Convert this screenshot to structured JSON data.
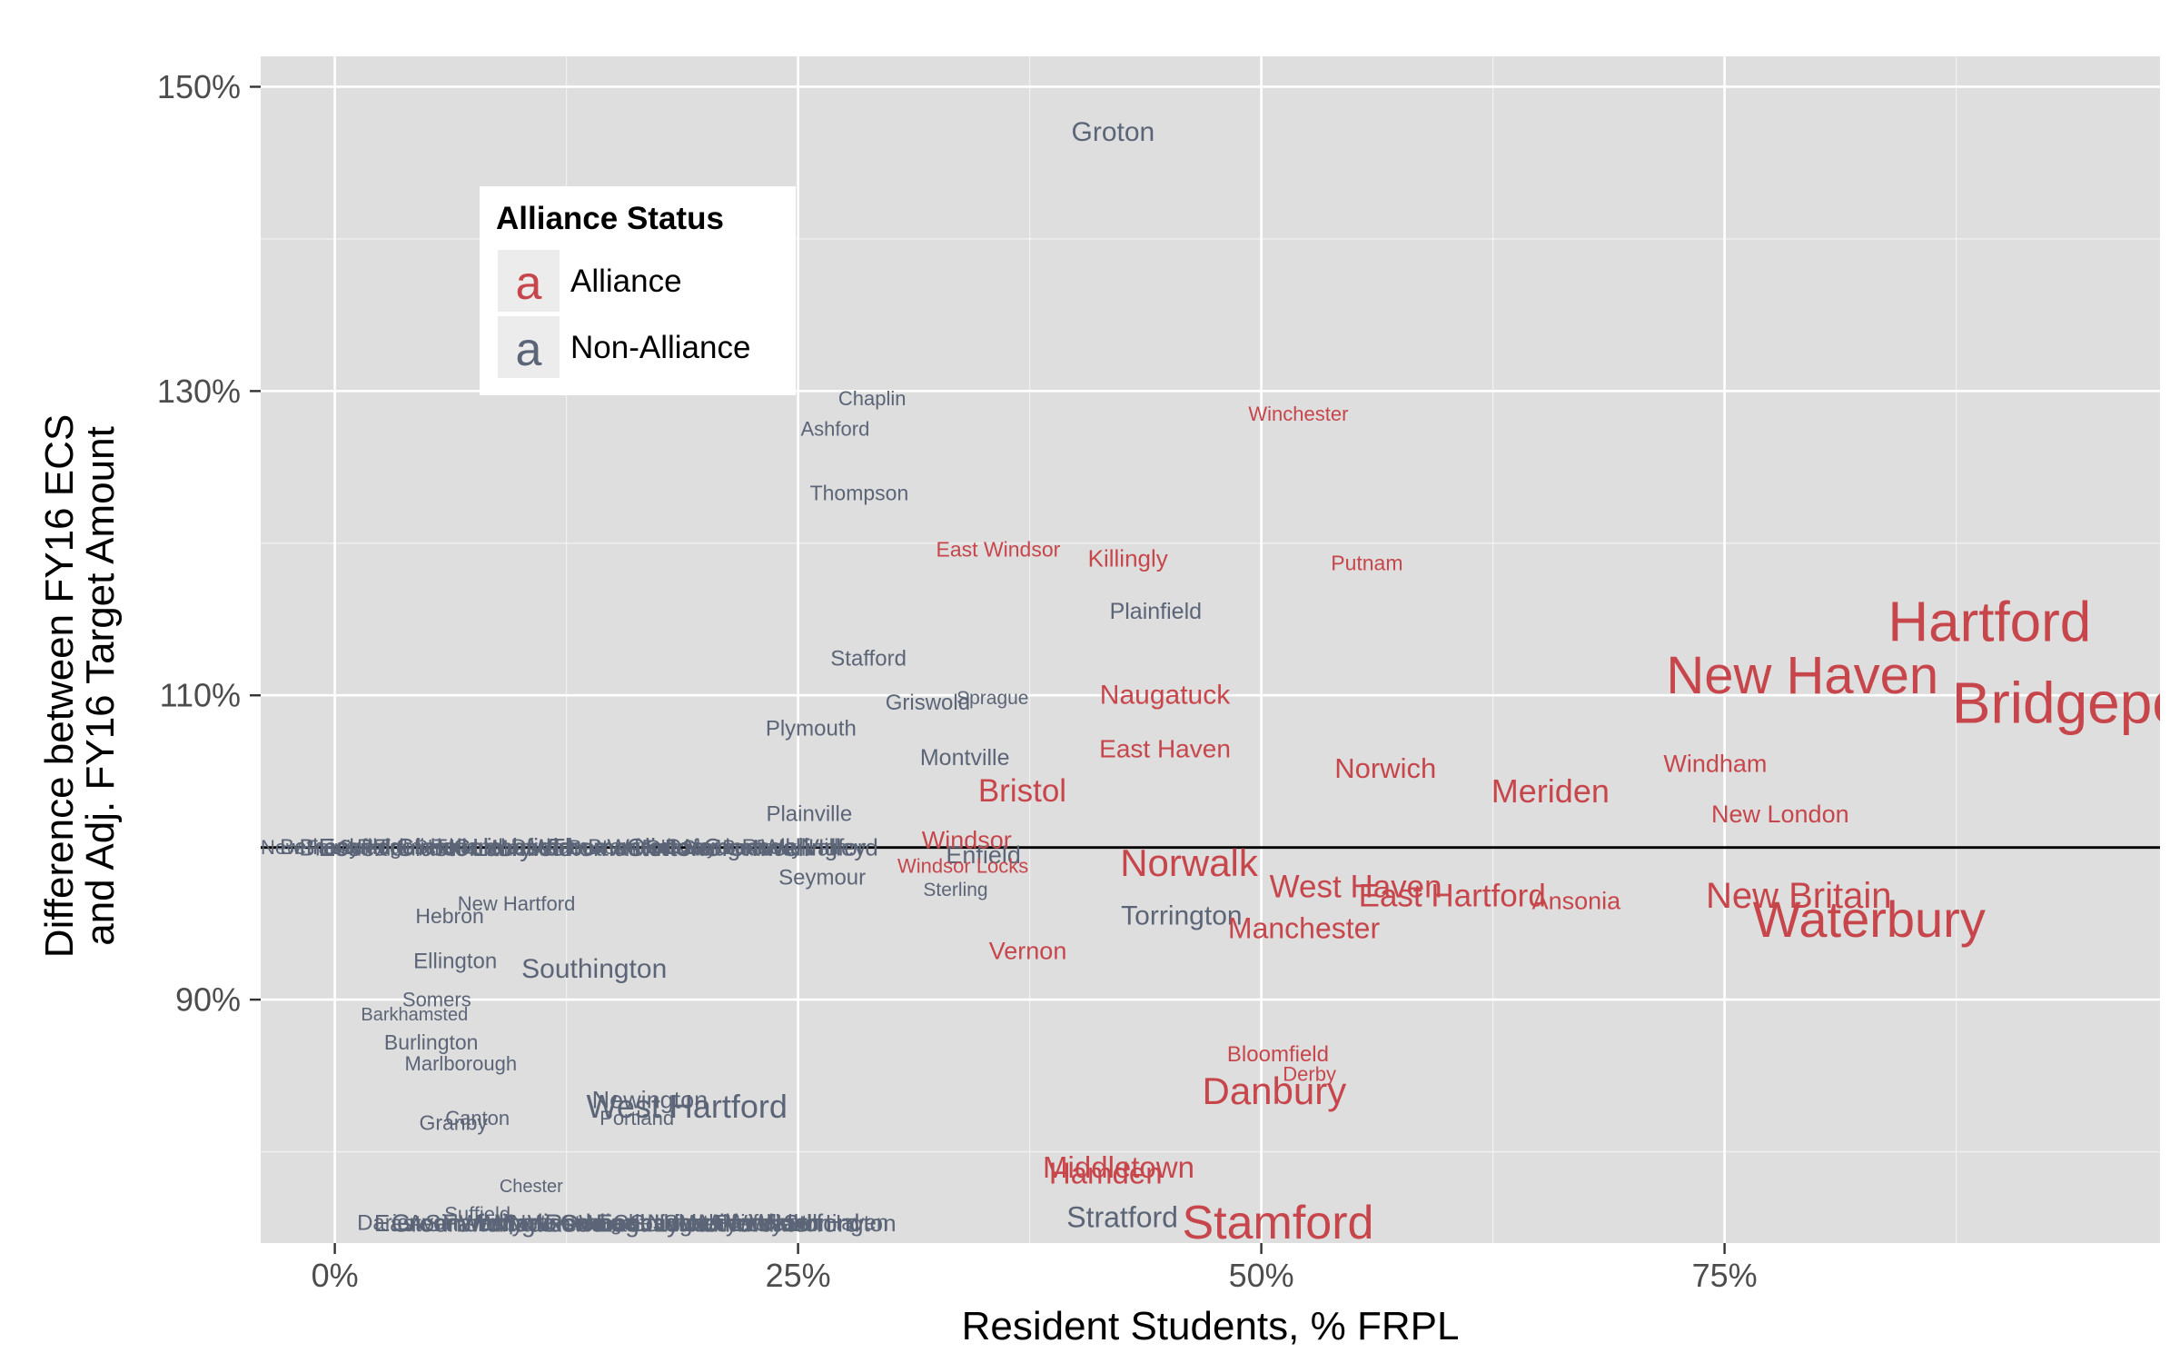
{
  "chart_data": {
    "type": "scatter",
    "title": "",
    "xlabel": "Resident Students, % FRPL",
    "ylabel_lines": [
      "Difference between FY16 ECS",
      "and Adj. FY16 Target Amount"
    ],
    "xlim": [
      -0.04,
      0.985
    ],
    "ylim": [
      0.74,
      1.52
    ],
    "x_ticks": [
      {
        "value": 0,
        "label": "0%"
      },
      {
        "value": 0.25,
        "label": "25%"
      },
      {
        "value": 0.5,
        "label": "50%"
      },
      {
        "value": 0.75,
        "label": "75%"
      }
    ],
    "y_ticks": [
      {
        "value": 0.9,
        "label": "90%"
      },
      {
        "value": 1.1,
        "label": "110%"
      },
      {
        "value": 1.3,
        "label": "130%"
      },
      {
        "value": 1.5,
        "label": "150%"
      }
    ],
    "reference_line": 1.0,
    "grid": true,
    "colors": {
      "Alliance": "#c7464b",
      "Non-Alliance": "#5b6577",
      "panel": "#dedede",
      "grid": "#ffffff"
    },
    "legend": {
      "title": "Alliance Status",
      "position": "top-left",
      "entries": [
        {
          "glyph": "a",
          "label": "Alliance",
          "group": "Alliance"
        },
        {
          "glyph": "a",
          "label": "Non-Alliance",
          "group": "Non-Alliance"
        }
      ]
    },
    "points": [
      {
        "label": "Groton",
        "x": 0.42,
        "y": 1.47,
        "group": "Non-Alliance",
        "size": 30
      },
      {
        "label": "Chaplin",
        "x": 0.29,
        "y": 1.295,
        "group": "Non-Alliance",
        "size": 22
      },
      {
        "label": "Ashford",
        "x": 0.27,
        "y": 1.275,
        "group": "Non-Alliance",
        "size": 22
      },
      {
        "label": "Thompson",
        "x": 0.283,
        "y": 1.233,
        "group": "Non-Alliance",
        "size": 23
      },
      {
        "label": "Plainfield",
        "x": 0.443,
        "y": 1.155,
        "group": "Non-Alliance",
        "size": 25
      },
      {
        "label": "Stafford",
        "x": 0.288,
        "y": 1.124,
        "group": "Non-Alliance",
        "size": 24
      },
      {
        "label": "Griswold",
        "x": 0.32,
        "y": 1.095,
        "group": "Non-Alliance",
        "size": 24
      },
      {
        "label": "Sprague",
        "x": 0.355,
        "y": 1.098,
        "group": "Non-Alliance",
        "size": 21
      },
      {
        "label": "Plymouth",
        "x": 0.257,
        "y": 1.078,
        "group": "Non-Alliance",
        "size": 24
      },
      {
        "label": "Montville",
        "x": 0.34,
        "y": 1.059,
        "group": "Non-Alliance",
        "size": 25
      },
      {
        "label": "Plainville",
        "x": 0.256,
        "y": 1.022,
        "group": "Non-Alliance",
        "size": 24
      },
      {
        "label": "Seymour",
        "x": 0.263,
        "y": 0.98,
        "group": "Non-Alliance",
        "size": 24
      },
      {
        "label": "Sterling",
        "x": 0.335,
        "y": 0.972,
        "group": "Non-Alliance",
        "size": 21
      },
      {
        "label": "Enfield",
        "x": 0.35,
        "y": 0.995,
        "group": "Non-Alliance",
        "size": 27
      },
      {
        "label": "Torrington",
        "x": 0.457,
        "y": 0.955,
        "group": "Non-Alliance",
        "size": 30
      },
      {
        "label": "New Hartford",
        "x": 0.098,
        "y": 0.963,
        "group": "Non-Alliance",
        "size": 22
      },
      {
        "label": "Hebron",
        "x": 0.062,
        "y": 0.955,
        "group": "Non-Alliance",
        "size": 23
      },
      {
        "label": "Ellington",
        "x": 0.065,
        "y": 0.925,
        "group": "Non-Alliance",
        "size": 24
      },
      {
        "label": "Southington",
        "x": 0.14,
        "y": 0.92,
        "group": "Non-Alliance",
        "size": 30
      },
      {
        "label": "Somers",
        "x": 0.055,
        "y": 0.9,
        "group": "Non-Alliance",
        "size": 22
      },
      {
        "label": "Barkhamsted",
        "x": 0.043,
        "y": 0.89,
        "group": "Non-Alliance",
        "size": 20
      },
      {
        "label": "Burlington",
        "x": 0.052,
        "y": 0.872,
        "group": "Non-Alliance",
        "size": 23
      },
      {
        "label": "Marlborough",
        "x": 0.068,
        "y": 0.858,
        "group": "Non-Alliance",
        "size": 22
      },
      {
        "label": "Newington",
        "x": 0.17,
        "y": 0.834,
        "group": "Non-Alliance",
        "size": 27
      },
      {
        "label": "West Hartford",
        "x": 0.19,
        "y": 0.83,
        "group": "Non-Alliance",
        "size": 36
      },
      {
        "label": "Portland",
        "x": 0.163,
        "y": 0.822,
        "group": "Non-Alliance",
        "size": 22
      },
      {
        "label": "Canton",
        "x": 0.077,
        "y": 0.822,
        "group": "Non-Alliance",
        "size": 22
      },
      {
        "label": "Granby",
        "x": 0.064,
        "y": 0.819,
        "group": "Non-Alliance",
        "size": 23
      },
      {
        "label": "Chester",
        "x": 0.106,
        "y": 0.777,
        "group": "Non-Alliance",
        "size": 20
      },
      {
        "label": "Suffield",
        "x": 0.077,
        "y": 0.759,
        "group": "Non-Alliance",
        "size": 22
      },
      {
        "label": "Stratford",
        "x": 0.425,
        "y": 0.757,
        "group": "Non-Alliance",
        "size": 32
      },
      {
        "label": "Winchester",
        "x": 0.52,
        "y": 1.285,
        "group": "Alliance",
        "size": 22
      },
      {
        "label": "East Windsor",
        "x": 0.358,
        "y": 1.196,
        "group": "Alliance",
        "size": 23
      },
      {
        "label": "Killingly",
        "x": 0.428,
        "y": 1.19,
        "group": "Alliance",
        "size": 26
      },
      {
        "label": "Putnam",
        "x": 0.557,
        "y": 1.187,
        "group": "Alliance",
        "size": 23
      },
      {
        "label": "Naugatuck",
        "x": 0.448,
        "y": 1.1,
        "group": "Alliance",
        "size": 30
      },
      {
        "label": "East Haven",
        "x": 0.448,
        "y": 1.065,
        "group": "Alliance",
        "size": 28
      },
      {
        "label": "Norwich",
        "x": 0.567,
        "y": 1.052,
        "group": "Alliance",
        "size": 31
      },
      {
        "label": "Meriden",
        "x": 0.656,
        "y": 1.037,
        "group": "Alliance",
        "size": 36
      },
      {
        "label": "Windham",
        "x": 0.745,
        "y": 1.055,
        "group": "Alliance",
        "size": 27
      },
      {
        "label": "Bristol",
        "x": 0.371,
        "y": 1.037,
        "group": "Alliance",
        "size": 35
      },
      {
        "label": "New London",
        "x": 0.78,
        "y": 1.022,
        "group": "Alliance",
        "size": 27
      },
      {
        "label": "Windsor",
        "x": 0.341,
        "y": 1.005,
        "group": "Alliance",
        "size": 27
      },
      {
        "label": "Windsor Locks",
        "x": 0.339,
        "y": 0.988,
        "group": "Alliance",
        "size": 22
      },
      {
        "label": "Norwalk",
        "x": 0.461,
        "y": 0.99,
        "group": "Alliance",
        "size": 42
      },
      {
        "label": "West Haven",
        "x": 0.551,
        "y": 0.974,
        "group": "Alliance",
        "size": 35
      },
      {
        "label": "East Hartford",
        "x": 0.603,
        "y": 0.968,
        "group": "Alliance",
        "size": 35
      },
      {
        "label": "Ansonia",
        "x": 0.67,
        "y": 0.965,
        "group": "Alliance",
        "size": 27
      },
      {
        "label": "New Britain",
        "x": 0.79,
        "y": 0.968,
        "group": "Alliance",
        "size": 40
      },
      {
        "label": "Waterbury",
        "x": 0.828,
        "y": 0.953,
        "group": "Alliance",
        "size": 56
      },
      {
        "label": "Manchester",
        "x": 0.523,
        "y": 0.947,
        "group": "Alliance",
        "size": 32
      },
      {
        "label": "Vernon",
        "x": 0.374,
        "y": 0.932,
        "group": "Alliance",
        "size": 27
      },
      {
        "label": "Hartford",
        "x": 0.893,
        "y": 1.148,
        "group": "Alliance",
        "size": 62
      },
      {
        "label": "New Haven",
        "x": 0.792,
        "y": 1.113,
        "group": "Alliance",
        "size": 58
      },
      {
        "label": "Bridgeport",
        "x": 0.945,
        "y": 1.095,
        "group": "Alliance",
        "size": 64
      },
      {
        "label": "Bloomfield",
        "x": 0.509,
        "y": 0.864,
        "group": "Alliance",
        "size": 24
      },
      {
        "label": "Derby",
        "x": 0.526,
        "y": 0.851,
        "group": "Alliance",
        "size": 22
      },
      {
        "label": "Danbury",
        "x": 0.507,
        "y": 0.84,
        "group": "Alliance",
        "size": 42
      },
      {
        "label": "Middletown",
        "x": 0.423,
        "y": 0.79,
        "group": "Alliance",
        "size": 33
      },
      {
        "label": "Hamden",
        "x": 0.416,
        "y": 0.786,
        "group": "Alliance",
        "size": 33
      },
      {
        "label": "Stamford",
        "x": 0.509,
        "y": 0.753,
        "group": "Alliance",
        "size": 52
      }
    ],
    "dense_labels_y1": [
      "New Fairfield",
      "Bethany",
      "Brookfield",
      "Essex",
      "Guilford",
      "Ridgefield",
      "Trumbull",
      "Glastonbury",
      "Shelton",
      "Tolland",
      "Colchester",
      "Litchfield",
      "Monroe",
      "Durham",
      "Wolcott",
      "Thomaston",
      "Beacon Falls",
      "Branford",
      "Watertown",
      "Clinton",
      "Old Saybrook",
      "Oxford",
      "Naugatuck Valley",
      "Cromwell",
      "Berlin",
      "Rocky Hill",
      "Wallingford"
    ],
    "dense_labels_bottom": [
      "Darien",
      "Easton",
      "Greenwich",
      "Avon",
      "Simsbury",
      "Farmington",
      "Westport",
      "Wilton",
      "Madison",
      "New Canaan",
      "Weston",
      "Redding",
      "Orange",
      "Woodbridge",
      "East Lyme",
      "Cheshire",
      "Southbury",
      "Newtown",
      "South Windsor",
      "Wethersfield",
      "Milford",
      "Fairfield",
      "Ledyard",
      "Waterford",
      "North Haven",
      "Stonington"
    ]
  }
}
